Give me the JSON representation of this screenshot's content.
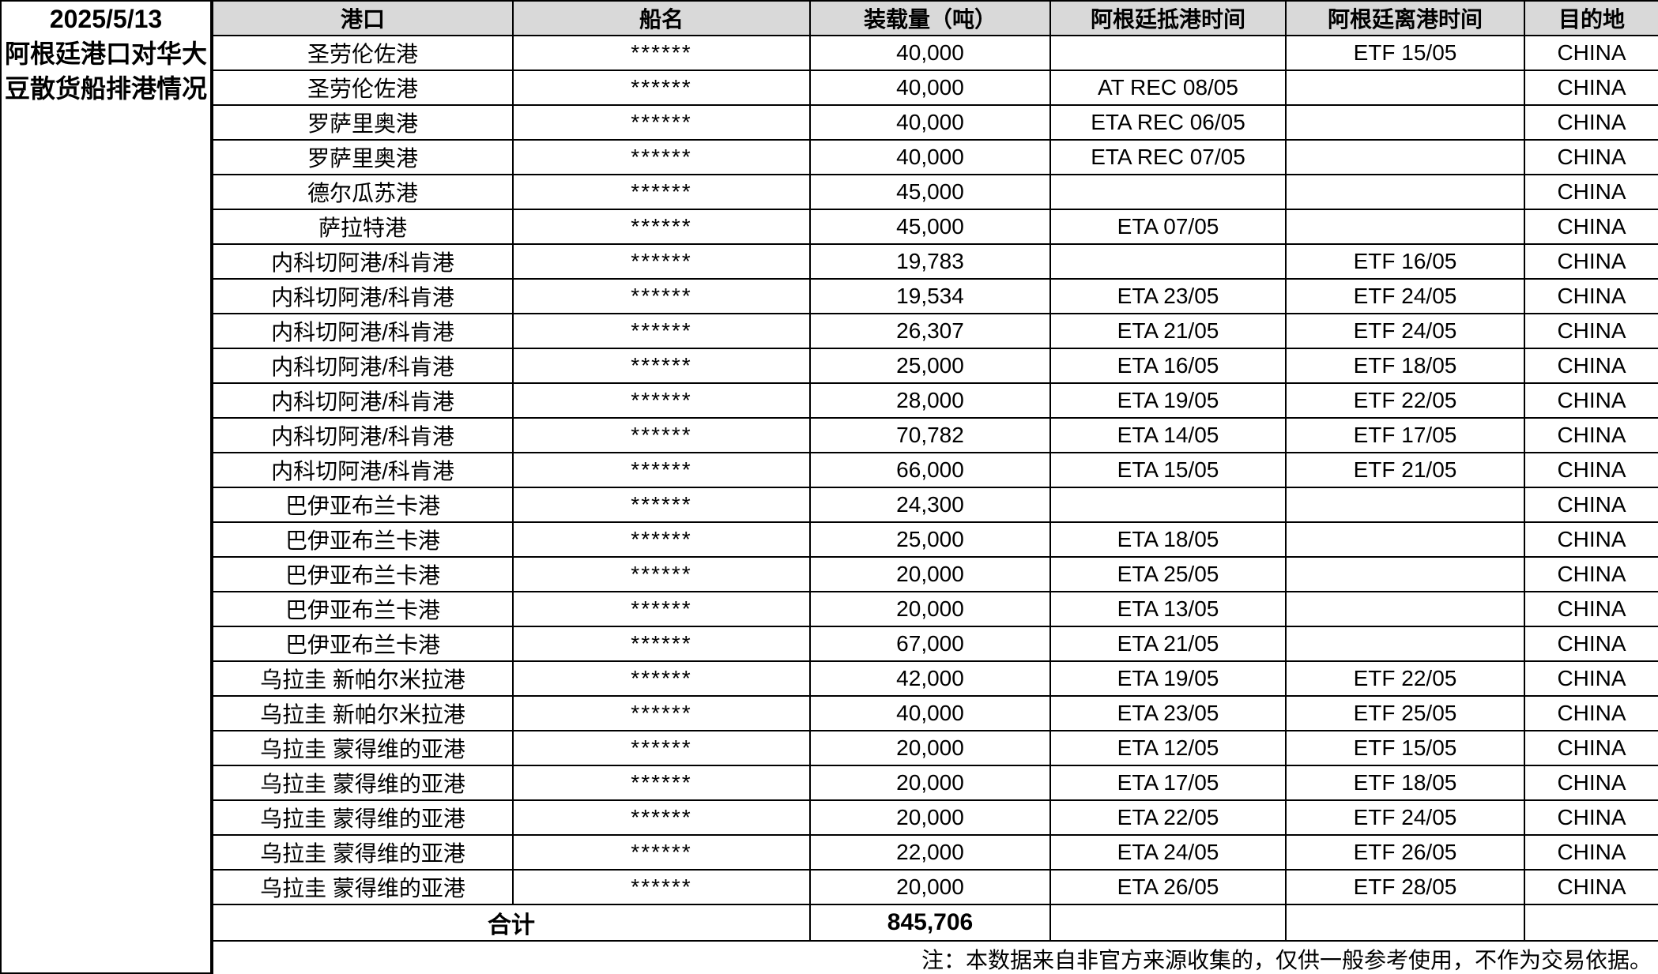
{
  "header": {
    "date": "2025/5/13",
    "title_line1": "阿根廷港口对华大",
    "title_line2": "豆散货船排港情况"
  },
  "colors": {
    "header_bg": "#D9D9D9",
    "total_text": "#EE0000",
    "border": "#000000"
  },
  "table": {
    "columns": [
      "港口",
      "船名",
      "装载量（吨）",
      "阿根廷抵港时间",
      "阿根廷离港时间",
      "目的地"
    ],
    "rows": [
      {
        "port": "圣劳伦佐港",
        "vessel": "******",
        "tonnage": "40,000",
        "arrival": "",
        "departure": "ETF 15/05",
        "destination": "CHINA"
      },
      {
        "port": "圣劳伦佐港",
        "vessel": "******",
        "tonnage": "40,000",
        "arrival": "AT REC 08/05",
        "departure": "",
        "destination": "CHINA"
      },
      {
        "port": "罗萨里奥港",
        "vessel": "******",
        "tonnage": "40,000",
        "arrival": "ETA REC 06/05",
        "departure": "",
        "destination": "CHINA"
      },
      {
        "port": "罗萨里奥港",
        "vessel": "******",
        "tonnage": "40,000",
        "arrival": "ETA REC 07/05",
        "departure": "",
        "destination": "CHINA"
      },
      {
        "port": "德尔瓜苏港",
        "vessel": "******",
        "tonnage": "45,000",
        "arrival": "",
        "departure": "",
        "destination": "CHINA"
      },
      {
        "port": "萨拉特港",
        "vessel": "******",
        "tonnage": "45,000",
        "arrival": "ETA 07/05",
        "departure": "",
        "destination": "CHINA"
      },
      {
        "port": "内科切阿港/科肯港",
        "vessel": "******",
        "tonnage": "19,783",
        "arrival": "",
        "departure": "ETF 16/05",
        "destination": "CHINA"
      },
      {
        "port": "内科切阿港/科肯港",
        "vessel": "******",
        "tonnage": "19,534",
        "arrival": "ETA 23/05",
        "departure": "ETF 24/05",
        "destination": "CHINA"
      },
      {
        "port": "内科切阿港/科肯港",
        "vessel": "******",
        "tonnage": "26,307",
        "arrival": "ETA 21/05",
        "departure": "ETF 24/05",
        "destination": "CHINA"
      },
      {
        "port": "内科切阿港/科肯港",
        "vessel": "******",
        "tonnage": "25,000",
        "arrival": "ETA 16/05",
        "departure": "ETF 18/05",
        "destination": "CHINA"
      },
      {
        "port": "内科切阿港/科肯港",
        "vessel": "******",
        "tonnage": "28,000",
        "arrival": "ETA 19/05",
        "departure": "ETF 22/05",
        "destination": "CHINA"
      },
      {
        "port": "内科切阿港/科肯港",
        "vessel": "******",
        "tonnage": "70,782",
        "arrival": "ETA 14/05",
        "departure": "ETF 17/05",
        "destination": "CHINA"
      },
      {
        "port": "内科切阿港/科肯港",
        "vessel": "******",
        "tonnage": "66,000",
        "arrival": "ETA 15/05",
        "departure": "ETF 21/05",
        "destination": "CHINA"
      },
      {
        "port": "巴伊亚布兰卡港",
        "vessel": "******",
        "tonnage": "24,300",
        "arrival": "",
        "departure": "",
        "destination": "CHINA"
      },
      {
        "port": "巴伊亚布兰卡港",
        "vessel": "******",
        "tonnage": "25,000",
        "arrival": "ETA 18/05",
        "departure": "",
        "destination": "CHINA"
      },
      {
        "port": "巴伊亚布兰卡港",
        "vessel": "******",
        "tonnage": "20,000",
        "arrival": "ETA 25/05",
        "departure": "",
        "destination": "CHINA"
      },
      {
        "port": "巴伊亚布兰卡港",
        "vessel": "******",
        "tonnage": "20,000",
        "arrival": "ETA 13/05",
        "departure": "",
        "destination": "CHINA"
      },
      {
        "port": "巴伊亚布兰卡港",
        "vessel": "******",
        "tonnage": "67,000",
        "arrival": "ETA 21/05",
        "departure": "",
        "destination": "CHINA"
      },
      {
        "port": "乌拉圭 新帕尔米拉港",
        "vessel": "******",
        "tonnage": "42,000",
        "arrival": "ETA 19/05",
        "departure": "ETF 22/05",
        "destination": "CHINA"
      },
      {
        "port": "乌拉圭 新帕尔米拉港",
        "vessel": "******",
        "tonnage": "40,000",
        "arrival": "ETA 23/05",
        "departure": "ETF 25/05",
        "destination": "CHINA"
      },
      {
        "port": "乌拉圭 蒙得维的亚港",
        "vessel": "******",
        "tonnage": "20,000",
        "arrival": "ETA 12/05",
        "departure": "ETF 15/05",
        "destination": "CHINA"
      },
      {
        "port": "乌拉圭 蒙得维的亚港",
        "vessel": "******",
        "tonnage": "20,000",
        "arrival": "ETA 17/05",
        "departure": "ETF 18/05",
        "destination": "CHINA"
      },
      {
        "port": "乌拉圭 蒙得维的亚港",
        "vessel": "******",
        "tonnage": "20,000",
        "arrival": "ETA 22/05",
        "departure": "ETF 24/05",
        "destination": "CHINA"
      },
      {
        "port": "乌拉圭 蒙得维的亚港",
        "vessel": "******",
        "tonnage": "22,000",
        "arrival": "ETA 24/05",
        "departure": "ETF 26/05",
        "destination": "CHINA"
      },
      {
        "port": "乌拉圭 蒙得维的亚港",
        "vessel": "******",
        "tonnage": "20,000",
        "arrival": "ETA 26/05",
        "departure": "ETF 28/05",
        "destination": "CHINA"
      }
    ],
    "total": {
      "label": "合计",
      "value": "845,706"
    },
    "note": "注：本数据来自非官方来源收集的，仅供一般参考使用，不作为交易依据。"
  }
}
